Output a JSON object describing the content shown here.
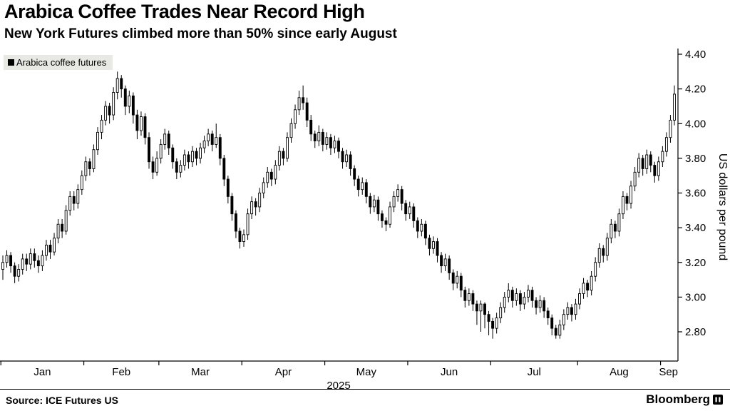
{
  "header": {
    "title": "Arabica Coffee Trades Near Record High",
    "subtitle": "New York Futures climbed more than 50% since early August"
  },
  "legend": {
    "label": "Arabica coffee futures"
  },
  "footer": {
    "source_label": "Source:",
    "source_value": "ICE Futures US",
    "brand": "Bloomberg"
  },
  "colors": {
    "candle": "#000000",
    "candle_up_fill": "#ffffff",
    "axis": "#000000",
    "legend_bg": "#e8e8e4",
    "background": "#ffffff"
  },
  "chart_data": {
    "type": "candlestick",
    "title": "Arabica Coffee Trades Near Record High",
    "subtitle": "New York Futures climbed more than 50% since early August",
    "series_name": "Arabica coffee futures",
    "xlabel": "",
    "ylabel": "US dollars per pound",
    "year_label": "2025",
    "ylim": [
      2.65,
      4.45
    ],
    "yticks": [
      2.8,
      3.0,
      3.2,
      3.4,
      3.6,
      3.8,
      4.0,
      4.2,
      4.4
    ],
    "grid": false,
    "legend_position": "top-left",
    "x_months": [
      {
        "label": "Jan",
        "start": 0
      },
      {
        "label": "Feb",
        "start": 21
      },
      {
        "label": "Mar",
        "start": 40
      },
      {
        "label": "Apr",
        "start": 61
      },
      {
        "label": "May",
        "start": 82
      },
      {
        "label": "Jun",
        "start": 103
      },
      {
        "label": "Jul",
        "start": 124
      },
      {
        "label": "Aug",
        "start": 146
      },
      {
        "label": "Sep",
        "start": 167
      }
    ],
    "candles_format": [
      "open",
      "high",
      "low",
      "close"
    ],
    "candles": [
      [
        3.16,
        3.24,
        3.1,
        3.2
      ],
      [
        3.2,
        3.27,
        3.17,
        3.24
      ],
      [
        3.24,
        3.26,
        3.14,
        3.18
      ],
      [
        3.18,
        3.2,
        3.08,
        3.12
      ],
      [
        3.12,
        3.19,
        3.09,
        3.16
      ],
      [
        3.16,
        3.25,
        3.13,
        3.22
      ],
      [
        3.22,
        3.25,
        3.15,
        3.19
      ],
      [
        3.19,
        3.28,
        3.16,
        3.25
      ],
      [
        3.25,
        3.28,
        3.17,
        3.21
      ],
      [
        3.21,
        3.24,
        3.14,
        3.18
      ],
      [
        3.18,
        3.27,
        3.15,
        3.24
      ],
      [
        3.24,
        3.33,
        3.21,
        3.3
      ],
      [
        3.3,
        3.33,
        3.22,
        3.26
      ],
      [
        3.26,
        3.37,
        3.24,
        3.34
      ],
      [
        3.34,
        3.45,
        3.31,
        3.42
      ],
      [
        3.42,
        3.45,
        3.34,
        3.38
      ],
      [
        3.38,
        3.53,
        3.36,
        3.5
      ],
      [
        3.5,
        3.61,
        3.47,
        3.58
      ],
      [
        3.58,
        3.61,
        3.5,
        3.54
      ],
      [
        3.54,
        3.65,
        3.51,
        3.62
      ],
      [
        3.62,
        3.73,
        3.59,
        3.7
      ],
      [
        3.7,
        3.81,
        3.67,
        3.78
      ],
      [
        3.78,
        3.8,
        3.7,
        3.74
      ],
      [
        3.74,
        3.88,
        3.72,
        3.85
      ],
      [
        3.85,
        3.98,
        3.82,
        3.95
      ],
      [
        3.95,
        4.05,
        3.91,
        4.02
      ],
      [
        4.02,
        4.13,
        3.99,
        4.1
      ],
      [
        4.1,
        4.12,
        4.0,
        4.05
      ],
      [
        4.05,
        4.21,
        4.02,
        4.18
      ],
      [
        4.18,
        4.3,
        4.14,
        4.26
      ],
      [
        4.26,
        4.28,
        4.15,
        4.2
      ],
      [
        4.2,
        4.22,
        4.05,
        4.1
      ],
      [
        4.1,
        4.19,
        4.06,
        4.16
      ],
      [
        4.16,
        4.18,
        4.0,
        4.05
      ],
      [
        4.05,
        4.08,
        3.91,
        3.96
      ],
      [
        3.96,
        4.07,
        3.93,
        4.04
      ],
      [
        4.04,
        4.06,
        3.88,
        3.92
      ],
      [
        3.92,
        3.95,
        3.74,
        3.78
      ],
      [
        3.78,
        3.81,
        3.68,
        3.72
      ],
      [
        3.72,
        3.84,
        3.7,
        3.8
      ],
      [
        3.8,
        3.91,
        3.77,
        3.88
      ],
      [
        3.88,
        3.97,
        3.85,
        3.94
      ],
      [
        3.94,
        3.96,
        3.82,
        3.86
      ],
      [
        3.86,
        3.88,
        3.74,
        3.78
      ],
      [
        3.78,
        3.8,
        3.68,
        3.72
      ],
      [
        3.72,
        3.79,
        3.69,
        3.76
      ],
      [
        3.76,
        3.85,
        3.73,
        3.82
      ],
      [
        3.82,
        3.84,
        3.74,
        3.78
      ],
      [
        3.78,
        3.87,
        3.75,
        3.84
      ],
      [
        3.84,
        3.86,
        3.76,
        3.8
      ],
      [
        3.8,
        3.89,
        3.77,
        3.86
      ],
      [
        3.86,
        3.93,
        3.83,
        3.9
      ],
      [
        3.9,
        3.97,
        3.87,
        3.94
      ],
      [
        3.94,
        3.96,
        3.84,
        3.88
      ],
      [
        3.88,
        4.0,
        3.86,
        3.92
      ],
      [
        3.92,
        3.94,
        3.76,
        3.8
      ],
      [
        3.8,
        3.82,
        3.64,
        3.68
      ],
      [
        3.68,
        3.7,
        3.54,
        3.58
      ],
      [
        3.58,
        3.6,
        3.44,
        3.48
      ],
      [
        3.48,
        3.5,
        3.34,
        3.38
      ],
      [
        3.38,
        3.4,
        3.28,
        3.32
      ],
      [
        3.32,
        3.39,
        3.29,
        3.36
      ],
      [
        3.36,
        3.51,
        3.33,
        3.48
      ],
      [
        3.48,
        3.58,
        3.45,
        3.55
      ],
      [
        3.55,
        3.57,
        3.47,
        3.52
      ],
      [
        3.52,
        3.63,
        3.49,
        3.6
      ],
      [
        3.6,
        3.69,
        3.57,
        3.66
      ],
      [
        3.66,
        3.75,
        3.63,
        3.72
      ],
      [
        3.72,
        3.74,
        3.64,
        3.68
      ],
      [
        3.68,
        3.79,
        3.65,
        3.76
      ],
      [
        3.76,
        3.87,
        3.73,
        3.84
      ],
      [
        3.84,
        3.86,
        3.76,
        3.8
      ],
      [
        3.8,
        3.95,
        3.78,
        3.92
      ],
      [
        3.92,
        4.03,
        3.89,
        4.0
      ],
      [
        4.0,
        4.11,
        3.97,
        4.08
      ],
      [
        4.08,
        4.19,
        4.05,
        4.15
      ],
      [
        4.15,
        4.22,
        4.08,
        4.12
      ],
      [
        4.12,
        4.15,
        3.98,
        4.02
      ],
      [
        4.02,
        4.05,
        3.9,
        3.94
      ],
      [
        3.94,
        3.96,
        3.86,
        3.9
      ],
      [
        3.9,
        3.99,
        3.87,
        3.95
      ],
      [
        3.95,
        3.97,
        3.84,
        3.88
      ],
      [
        3.88,
        3.95,
        3.85,
        3.92
      ],
      [
        3.92,
        3.94,
        3.82,
        3.86
      ],
      [
        3.86,
        3.93,
        3.83,
        3.9
      ],
      [
        3.9,
        3.92,
        3.8,
        3.84
      ],
      [
        3.84,
        3.86,
        3.74,
        3.78
      ],
      [
        3.78,
        3.85,
        3.75,
        3.82
      ],
      [
        3.82,
        3.84,
        3.7,
        3.74
      ],
      [
        3.74,
        3.76,
        3.64,
        3.68
      ],
      [
        3.68,
        3.7,
        3.58,
        3.62
      ],
      [
        3.62,
        3.69,
        3.59,
        3.66
      ],
      [
        3.66,
        3.68,
        3.54,
        3.58
      ],
      [
        3.58,
        3.6,
        3.48,
        3.52
      ],
      [
        3.52,
        3.59,
        3.49,
        3.56
      ],
      [
        3.56,
        3.58,
        3.44,
        3.48
      ],
      [
        3.48,
        3.5,
        3.4,
        3.44
      ],
      [
        3.44,
        3.46,
        3.38,
        3.42
      ],
      [
        3.42,
        3.55,
        3.4,
        3.52
      ],
      [
        3.52,
        3.61,
        3.49,
        3.58
      ],
      [
        3.58,
        3.65,
        3.55,
        3.62
      ],
      [
        3.62,
        3.64,
        3.5,
        3.54
      ],
      [
        3.54,
        3.56,
        3.44,
        3.48
      ],
      [
        3.48,
        3.55,
        3.45,
        3.52
      ],
      [
        3.52,
        3.54,
        3.4,
        3.44
      ],
      [
        3.44,
        3.46,
        3.34,
        3.38
      ],
      [
        3.38,
        3.45,
        3.35,
        3.42
      ],
      [
        3.42,
        3.44,
        3.3,
        3.34
      ],
      [
        3.34,
        3.36,
        3.24,
        3.28
      ],
      [
        3.28,
        3.35,
        3.25,
        3.32
      ],
      [
        3.32,
        3.34,
        3.2,
        3.24
      ],
      [
        3.24,
        3.26,
        3.14,
        3.18
      ],
      [
        3.18,
        3.25,
        3.15,
        3.22
      ],
      [
        3.22,
        3.24,
        3.1,
        3.14
      ],
      [
        3.14,
        3.16,
        3.04,
        3.08
      ],
      [
        3.08,
        3.15,
        3.05,
        3.12
      ],
      [
        3.12,
        3.14,
        3.0,
        3.04
      ],
      [
        3.04,
        3.06,
        2.94,
        2.98
      ],
      [
        2.98,
        3.05,
        2.95,
        3.02
      ],
      [
        3.02,
        3.04,
        2.92,
        2.96
      ],
      [
        2.96,
        2.98,
        2.84,
        2.92
      ],
      [
        2.92,
        2.98,
        2.8,
        2.96
      ],
      [
        2.96,
        2.97,
        2.82,
        2.9
      ],
      [
        2.9,
        2.92,
        2.78,
        2.86
      ],
      [
        2.86,
        2.88,
        2.76,
        2.82
      ],
      [
        2.82,
        2.91,
        2.79,
        2.88
      ],
      [
        2.88,
        2.97,
        2.85,
        2.94
      ],
      [
        2.94,
        3.03,
        2.91,
        3.0
      ],
      [
        3.0,
        3.08,
        2.97,
        3.04
      ],
      [
        3.04,
        3.06,
        2.94,
        2.98
      ],
      [
        2.98,
        3.05,
        2.95,
        3.02
      ],
      [
        3.02,
        3.04,
        2.92,
        2.96
      ],
      [
        2.96,
        3.03,
        2.93,
        3.0
      ],
      [
        3.0,
        3.07,
        2.97,
        3.04
      ],
      [
        3.04,
        3.06,
        2.94,
        2.98
      ],
      [
        2.98,
        3.0,
        2.9,
        2.94
      ],
      [
        2.94,
        3.01,
        2.91,
        2.98
      ],
      [
        2.98,
        3.0,
        2.88,
        2.92
      ],
      [
        2.92,
        2.94,
        2.84,
        2.88
      ],
      [
        2.88,
        2.9,
        2.78,
        2.82
      ],
      [
        2.82,
        2.84,
        2.76,
        2.78
      ],
      [
        2.78,
        2.87,
        2.76,
        2.84
      ],
      [
        2.84,
        2.93,
        2.81,
        2.9
      ],
      [
        2.9,
        2.97,
        2.87,
        2.94
      ],
      [
        2.94,
        2.96,
        2.86,
        2.9
      ],
      [
        2.9,
        2.99,
        2.87,
        2.96
      ],
      [
        2.96,
        3.05,
        2.93,
        3.02
      ],
      [
        3.02,
        3.11,
        2.99,
        3.08
      ],
      [
        3.08,
        3.1,
        3.0,
        3.04
      ],
      [
        3.04,
        3.15,
        3.01,
        3.12
      ],
      [
        3.12,
        3.23,
        3.09,
        3.2
      ],
      [
        3.2,
        3.31,
        3.17,
        3.28
      ],
      [
        3.28,
        3.3,
        3.2,
        3.24
      ],
      [
        3.24,
        3.37,
        3.21,
        3.34
      ],
      [
        3.34,
        3.45,
        3.31,
        3.42
      ],
      [
        3.42,
        3.44,
        3.34,
        3.38
      ],
      [
        3.38,
        3.51,
        3.35,
        3.48
      ],
      [
        3.48,
        3.61,
        3.45,
        3.58
      ],
      [
        3.58,
        3.6,
        3.5,
        3.54
      ],
      [
        3.54,
        3.67,
        3.51,
        3.64
      ],
      [
        3.64,
        3.75,
        3.61,
        3.72
      ],
      [
        3.72,
        3.83,
        3.69,
        3.8
      ],
      [
        3.8,
        3.82,
        3.7,
        3.74
      ],
      [
        3.74,
        3.85,
        3.71,
        3.82
      ],
      [
        3.82,
        3.84,
        3.72,
        3.76
      ],
      [
        3.76,
        3.78,
        3.66,
        3.7
      ],
      [
        3.7,
        3.81,
        3.67,
        3.78
      ],
      [
        3.78,
        3.87,
        3.75,
        3.84
      ],
      [
        3.84,
        3.95,
        3.81,
        3.92
      ],
      [
        3.92,
        4.05,
        3.89,
        4.02
      ],
      [
        4.02,
        4.22,
        3.99,
        4.17
      ]
    ]
  }
}
